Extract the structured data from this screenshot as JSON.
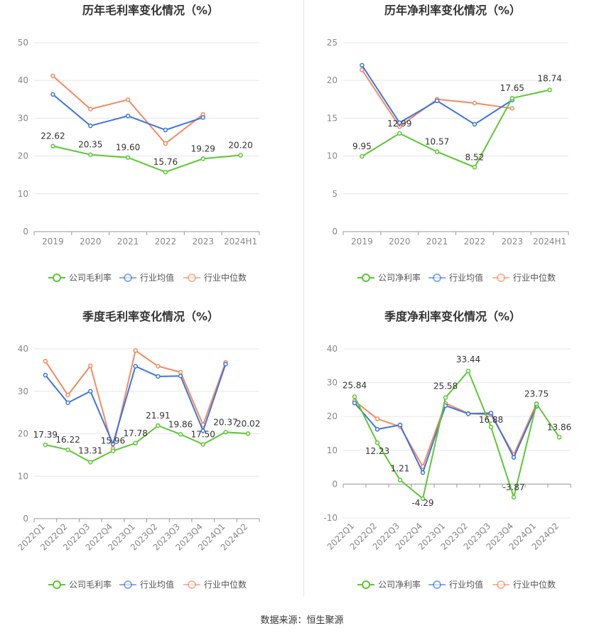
{
  "legend_labels": {
    "company_gross": "公司毛利率",
    "company_net": "公司净利率",
    "industry_avg": "行业均值",
    "industry_median": "行业中位数"
  },
  "source": "数据来源：恒生聚源",
  "colors": {
    "company": "#5cc832",
    "avg": "#3e74e0",
    "median": "#f58a5e"
  },
  "chart_data": [
    {
      "type": "line",
      "title": "历年毛利率变化情况（%）",
      "categories": [
        "2019",
        "2020",
        "2021",
        "2022",
        "2023",
        "2024H1"
      ],
      "ylim": [
        0,
        50
      ],
      "yticks": [
        0,
        10,
        20,
        30,
        40,
        50
      ],
      "grid": true,
      "legend_position": "bottom",
      "series": [
        {
          "name": "公司毛利率",
          "role": "company",
          "values": [
            22.62,
            20.35,
            19.6,
            15.76,
            19.29,
            20.2
          ],
          "labels": [
            "22.62",
            "20.35",
            "19.60",
            "15.76",
            "19.29",
            "20.20"
          ]
        },
        {
          "name": "行业均值",
          "role": "avg",
          "values": [
            36.3,
            28.0,
            30.6,
            26.9,
            30.2,
            null
          ]
        },
        {
          "name": "行业中位数",
          "role": "median",
          "values": [
            41.2,
            32.4,
            34.9,
            23.3,
            31.0,
            null
          ]
        }
      ]
    },
    {
      "type": "line",
      "title": "历年净利率变化情况（%）",
      "categories": [
        "2019",
        "2020",
        "2021",
        "2022",
        "2023",
        "2024H1"
      ],
      "ylim": [
        0,
        25
      ],
      "yticks": [
        0,
        5,
        10,
        15,
        20,
        25
      ],
      "grid": true,
      "legend_position": "bottom",
      "series": [
        {
          "name": "公司净利率",
          "role": "company",
          "values": [
            9.95,
            12.99,
            10.57,
            8.52,
            17.65,
            18.74
          ],
          "labels": [
            "9.95",
            "12.99",
            "10.57",
            "8.52",
            "17.65",
            "18.74"
          ]
        },
        {
          "name": "行业均值",
          "role": "avg",
          "values": [
            22.0,
            14.4,
            17.3,
            14.2,
            17.4,
            null
          ]
        },
        {
          "name": "行业中位数",
          "role": "median",
          "values": [
            21.4,
            13.9,
            17.5,
            17.0,
            16.3,
            null
          ]
        }
      ]
    },
    {
      "type": "line",
      "title": "季度毛利率变化情况（%）",
      "categories": [
        "2022Q1",
        "2022Q2",
        "2022Q3",
        "2022Q4",
        "2023Q1",
        "2023Q2",
        "2023Q3",
        "2023Q4",
        "2024Q1",
        "2024Q2"
      ],
      "ylim": [
        0,
        40
      ],
      "yticks": [
        0,
        10,
        20,
        30,
        40
      ],
      "grid": true,
      "legend_position": "bottom",
      "series": [
        {
          "name": "公司毛利率",
          "role": "company",
          "values": [
            17.39,
            16.22,
            13.31,
            15.96,
            17.78,
            21.91,
            19.86,
            17.5,
            20.37,
            20.02
          ],
          "labels": [
            "17.39",
            "16.22",
            "13.31",
            "15.96",
            "17.78",
            "21.91",
            "19.86",
            "17.50",
            "20.37",
            "20.02"
          ]
        },
        {
          "name": "行业均值",
          "role": "avg",
          "values": [
            33.8,
            27.3,
            30.0,
            17.6,
            35.9,
            33.5,
            33.6,
            20.7,
            36.4,
            null
          ]
        },
        {
          "name": "行业中位数",
          "role": "median",
          "values": [
            37.1,
            29.1,
            36.0,
            16.5,
            39.6,
            35.9,
            34.5,
            22.1,
            36.8,
            null
          ]
        }
      ]
    },
    {
      "type": "line",
      "title": "季度净利率变化情况（%）",
      "categories": [
        "2022Q1",
        "2022Q2",
        "2022Q3",
        "2022Q4",
        "2023Q1",
        "2023Q2",
        "2023Q3",
        "2023Q4",
        "2024Q1",
        "2024Q2"
      ],
      "ylim": [
        -10,
        40
      ],
      "yticks": [
        -10,
        0,
        10,
        20,
        30,
        40
      ],
      "grid": true,
      "legend_position": "bottom",
      "series": [
        {
          "name": "公司净利率",
          "role": "company",
          "values": [
            25.84,
            12.23,
            1.21,
            -4.29,
            25.58,
            33.44,
            16.88,
            -3.87,
            23.75,
            13.86
          ],
          "labels": [
            "25.84",
            "12.23",
            "1.21",
            "-4.29",
            "25.58",
            "33.44",
            "16.88",
            "-3.87",
            "23.75",
            "13.86"
          ]
        },
        {
          "name": "行业均值",
          "role": "avg",
          "values": [
            24.0,
            16.2,
            17.5,
            3.4,
            23.2,
            20.8,
            21.0,
            7.9,
            23.0,
            null
          ]
        },
        {
          "name": "行业中位数",
          "role": "median",
          "values": [
            24.6,
            19.3,
            17.0,
            5.2,
            23.9,
            20.9,
            20.5,
            8.7,
            23.8,
            null
          ]
        }
      ]
    }
  ]
}
